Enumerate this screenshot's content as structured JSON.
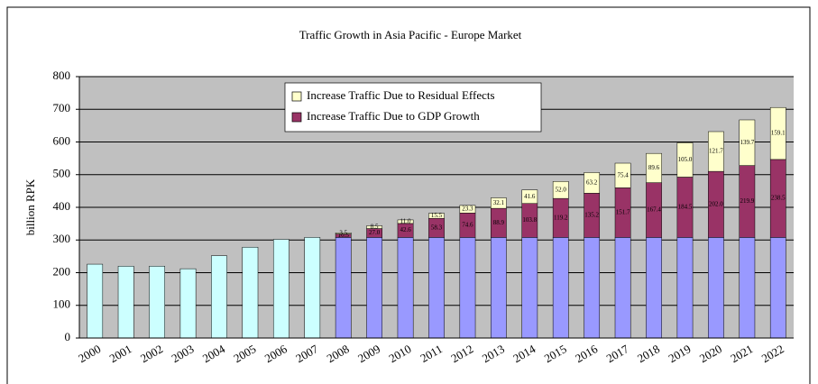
{
  "chart_data": {
    "type": "stacked_bar",
    "title": "Traffic Growth in Asia Pacific - Europe Market",
    "ylabel": "billion RPK",
    "categories": [
      "2000",
      "2001",
      "2002",
      "2003",
      "2004",
      "2005",
      "2006",
      "2007",
      "2008",
      "2009",
      "2010",
      "2011",
      "2012",
      "2013",
      "2014",
      "2015",
      "2016",
      "2017",
      "2018",
      "2019",
      "2020",
      "2021",
      "2022"
    ],
    "series": [
      {
        "color": "#ccffff",
        "values": [
          226,
          220,
          220,
          212,
          252,
          278,
          302,
          308,
          null,
          null,
          null,
          null,
          null,
          null,
          null,
          null,
          null,
          null,
          null,
          null,
          null,
          null,
          null
        ]
      },
      {
        "color": "#9999ff",
        "values": [
          null,
          null,
          null,
          null,
          null,
          null,
          null,
          null,
          308,
          308,
          308,
          308,
          308,
          308,
          308,
          308,
          308,
          308,
          308,
          308,
          308,
          308,
          308
        ]
      },
      {
        "name": "Increase Traffic Due to GDP Growth",
        "color": "#993366",
        "values": [
          null,
          null,
          null,
          null,
          null,
          null,
          null,
          null,
          10.5,
          27.0,
          42.6,
          58.3,
          74.6,
          88.9,
          103.8,
          119.2,
          135.2,
          151.7,
          167.4,
          184.5,
          202.0,
          219.9,
          238.5
        ],
        "value_labels": [
          null,
          null,
          null,
          null,
          null,
          null,
          null,
          null,
          "10.5",
          "27.0",
          "42.6",
          "58.3",
          "74.6",
          "88.9",
          "103.8",
          "119.2",
          "135.2",
          "151.7",
          "167.4",
          "184.5",
          "202.0",
          "219.9",
          "238.5"
        ]
      },
      {
        "name": "Increase Traffic Due to Residual Effects",
        "color": "#ffffcc",
        "values": [
          null,
          null,
          null,
          null,
          null,
          null,
          null,
          null,
          3.5,
          8.5,
          11.0,
          15.5,
          23.3,
          32.1,
          41.6,
          52.0,
          63.2,
          75.4,
          89.6,
          105.0,
          121.7,
          139.7,
          159.1
        ],
        "value_labels": [
          null,
          null,
          null,
          null,
          null,
          null,
          null,
          null,
          "3.5",
          "8.5",
          "11.0",
          "15.5",
          "23.3",
          "32.1",
          "41.6",
          "52.0",
          "63.2",
          "75.4",
          "89.6",
          "105.0",
          "121.7",
          "139.7",
          "159.1"
        ]
      }
    ],
    "ylim": [
      0,
      800
    ],
    "yticks": [
      0,
      100,
      200,
      300,
      400,
      500,
      600,
      700,
      800
    ],
    "grid": true
  }
}
